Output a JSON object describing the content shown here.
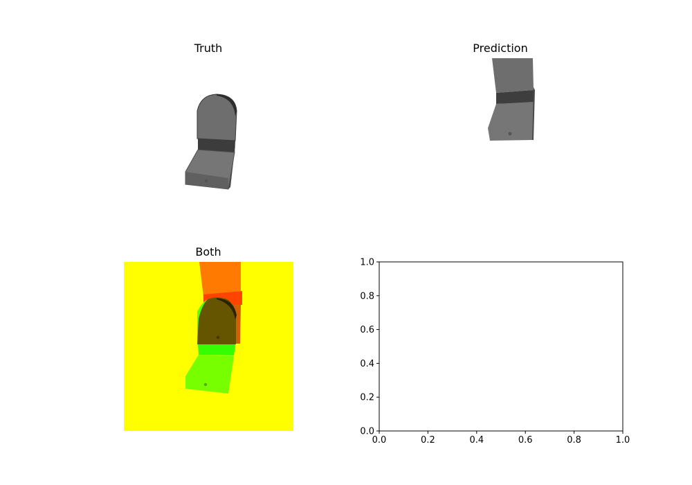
{
  "panels": {
    "truth": {
      "title": "Truth"
    },
    "prediction": {
      "title": "Prediction"
    },
    "both": {
      "title": "Both",
      "background_color": "#ffff00",
      "truth_overlay_color": "#33ff00",
      "prediction_overlay_color": "#ff4400"
    }
  },
  "chart_data": [
    {
      "type": "image",
      "title": "Truth",
      "content": "rendered gray chair, front view"
    },
    {
      "type": "image",
      "title": "Prediction",
      "content": "rendered gray chair, shifted upward"
    },
    {
      "type": "image",
      "title": "Both",
      "content": "overlay of truth (green) and prediction (red) on yellow background"
    },
    {
      "type": "scatter",
      "title": "",
      "xlabel": "",
      "ylabel": "",
      "xlim": [
        0.0,
        1.0
      ],
      "ylim": [
        0.0,
        1.0
      ],
      "xticks": [
        "0.0",
        "0.2",
        "0.4",
        "0.6",
        "0.8",
        "1.0"
      ],
      "yticks": [
        "0.0",
        "0.2",
        "0.4",
        "0.6",
        "0.8",
        "1.0"
      ],
      "series": [],
      "grid": false
    }
  ],
  "colors": {
    "chair_dark": "#404040",
    "chair_mid": "#6e6e6e",
    "chair_light": "#7a7a7a"
  }
}
